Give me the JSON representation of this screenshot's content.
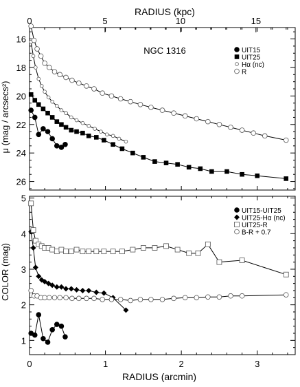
{
  "chart_data": [
    {
      "type": "scatter",
      "title": "NGC 1316",
      "xlabel": "RADIUS (arcmin)",
      "xlabel_top": "RADIUS (kpc)",
      "ylabel": "μ (mag / arcsecs²)",
      "xlim": [
        0,
        3.5
      ],
      "x2lim": [
        0,
        17.6
      ],
      "ylim": [
        26.6,
        15.2
      ],
      "xticks": [
        "0",
        "1",
        "2",
        "3"
      ],
      "x2ticks": [
        "0",
        "5",
        "10",
        "15"
      ],
      "yticks": [
        "16",
        "18",
        "20",
        "22",
        "24",
        "26"
      ],
      "legend_position": "top-right",
      "series": [
        {
          "name": "UIT15",
          "marker": "filled-circle",
          "x": [
            0.02,
            0.07,
            0.12,
            0.18,
            0.24,
            0.3,
            0.36,
            0.42,
            0.47
          ],
          "y": [
            21.0,
            21.5,
            22.7,
            22.3,
            22.5,
            23.0,
            23.5,
            23.6,
            23.4
          ]
        },
        {
          "name": "UIT25",
          "marker": "filled-square",
          "x": [
            0.02,
            0.07,
            0.12,
            0.18,
            0.24,
            0.3,
            0.36,
            0.42,
            0.48,
            0.55,
            0.62,
            0.7,
            0.78,
            0.88,
            0.98,
            1.1,
            1.22,
            1.36,
            1.5,
            1.65,
            1.8,
            1.95,
            2.1,
            2.25,
            2.4,
            2.6,
            2.8,
            3.0,
            3.38
          ],
          "y": [
            19.9,
            20.3,
            20.6,
            20.9,
            21.2,
            21.5,
            21.8,
            22.0,
            22.2,
            22.4,
            22.5,
            22.6,
            22.8,
            22.9,
            23.1,
            23.4,
            23.7,
            24.0,
            24.3,
            24.6,
            24.7,
            24.8,
            25.0,
            25.1,
            25.3,
            25.3,
            25.5,
            25.6,
            25.8
          ]
        },
        {
          "name": "Hα (nc)",
          "marker": "small-open-circle",
          "x": [
            0.02,
            0.05,
            0.08,
            0.12,
            0.16,
            0.2,
            0.25,
            0.3,
            0.36,
            0.42,
            0.48,
            0.55,
            0.62,
            0.7,
            0.78,
            0.86,
            0.94,
            1.02,
            1.1,
            1.18,
            1.27
          ],
          "y": [
            16.2,
            17.2,
            18.0,
            18.8,
            19.3,
            19.7,
            20.1,
            20.4,
            20.7,
            21.0,
            21.2,
            21.5,
            21.7,
            21.9,
            22.1,
            22.3,
            22.5,
            22.7,
            22.8,
            23.0,
            23.2
          ]
        },
        {
          "name": "R",
          "marker": "open-circle",
          "x": [
            0.02,
            0.06,
            0.1,
            0.15,
            0.2,
            0.26,
            0.33,
            0.4,
            0.48,
            0.56,
            0.65,
            0.75,
            0.85,
            0.96,
            1.08,
            1.2,
            1.33,
            1.46,
            1.6,
            1.75,
            1.9,
            2.05,
            2.2,
            2.35,
            2.5,
            2.65,
            2.8,
            2.95,
            3.1,
            3.38
          ],
          "y": [
            15.1,
            16.1,
            16.7,
            17.2,
            17.7,
            18.0,
            18.3,
            18.5,
            18.7,
            18.9,
            19.1,
            19.3,
            19.5,
            19.8,
            20.0,
            20.2,
            20.4,
            20.6,
            20.8,
            21.0,
            21.2,
            21.4,
            21.6,
            21.8,
            22.0,
            22.2,
            22.4,
            22.6,
            22.8,
            23.1
          ]
        }
      ]
    },
    {
      "type": "scatter",
      "xlabel": "RADIUS (arcmin)",
      "ylabel": "COLOR (mag)",
      "xlim": [
        0,
        3.5
      ],
      "ylim": [
        0.6,
        5.05
      ],
      "xticks": [
        "0",
        "1",
        "2",
        "3"
      ],
      "yticks": [
        "1",
        "2",
        "3",
        "4",
        "5"
      ],
      "legend_position": "top-right",
      "series": [
        {
          "name": "UIT15-UIT25",
          "marker": "filled-circle",
          "x": [
            0.02,
            0.07,
            0.12,
            0.18,
            0.24,
            0.3,
            0.36,
            0.42,
            0.47
          ],
          "y": [
            1.2,
            1.15,
            1.72,
            1.05,
            0.95,
            1.3,
            1.45,
            1.4,
            1.1
          ]
        },
        {
          "name": "UIT25-Hα (nc)",
          "marker": "filled-diamond",
          "x": [
            0.02,
            0.05,
            0.08,
            0.12,
            0.16,
            0.2,
            0.25,
            0.3,
            0.36,
            0.42,
            0.48,
            0.55,
            0.62,
            0.7,
            0.78,
            0.88,
            0.98,
            1.1,
            1.27
          ],
          "y": [
            4.05,
            3.6,
            3.05,
            2.8,
            2.7,
            2.65,
            2.6,
            2.55,
            2.5,
            2.5,
            2.45,
            2.45,
            2.42,
            2.4,
            2.4,
            2.35,
            2.33,
            2.2,
            1.85
          ]
        },
        {
          "name": "UIT25-R",
          "marker": "open-square",
          "x": [
            0.02,
            0.05,
            0.08,
            0.12,
            0.16,
            0.2,
            0.25,
            0.3,
            0.36,
            0.42,
            0.48,
            0.55,
            0.62,
            0.7,
            0.78,
            0.88,
            0.98,
            1.1,
            1.22,
            1.36,
            1.5,
            1.65,
            1.8,
            1.95,
            2.1,
            2.22,
            2.35,
            2.5,
            2.8,
            3.38
          ],
          "y": [
            4.85,
            4.1,
            3.8,
            3.7,
            3.65,
            3.6,
            3.6,
            3.55,
            3.5,
            3.55,
            3.5,
            3.5,
            3.55,
            3.5,
            3.5,
            3.5,
            3.5,
            3.5,
            3.5,
            3.55,
            3.6,
            3.6,
            3.65,
            3.55,
            3.45,
            3.45,
            3.7,
            3.2,
            3.25,
            2.85
          ]
        },
        {
          "name": "B-R + 0.7",
          "marker": "open-circle",
          "x": [
            0.02,
            0.06,
            0.1,
            0.15,
            0.2,
            0.26,
            0.33,
            0.4,
            0.48,
            0.56,
            0.65,
            0.75,
            0.85,
            0.96,
            1.08,
            1.2,
            1.33,
            1.46,
            1.6,
            1.75,
            1.9,
            2.05,
            2.2,
            2.35,
            2.5,
            2.65,
            2.8,
            3.38
          ],
          "y": [
            2.4,
            2.25,
            2.25,
            2.2,
            2.2,
            2.2,
            2.2,
            2.2,
            2.2,
            2.18,
            2.18,
            2.18,
            2.18,
            2.15,
            2.15,
            2.15,
            2.12,
            2.15,
            2.15,
            2.15,
            2.18,
            2.2,
            2.2,
            2.22,
            2.22,
            2.25,
            2.25,
            2.28
          ]
        }
      ]
    }
  ]
}
